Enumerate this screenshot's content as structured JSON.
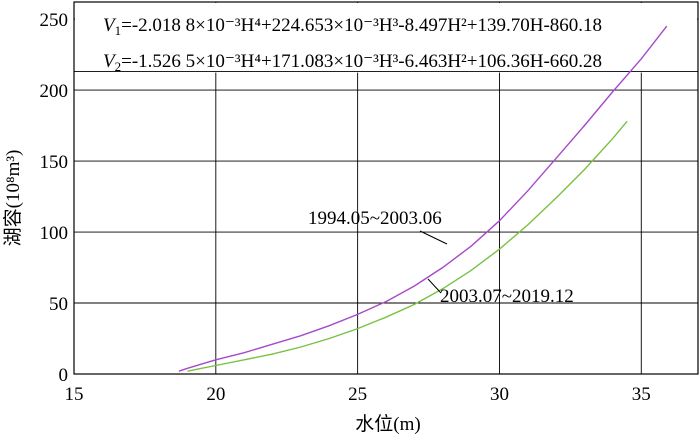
{
  "chart_data": {
    "type": "line",
    "xlabel": "水位(m)",
    "ylabel": "湖容(10⁸m³)",
    "xlim": [
      15,
      37
    ],
    "ylim": [
      0,
      262
    ],
    "xticks": [
      15,
      20,
      25,
      30,
      35
    ],
    "yticks": [
      0,
      50,
      100,
      150,
      200,
      250
    ],
    "grid": true,
    "formulas": [
      {
        "lhs": "V",
        "sub": "1",
        "text": "=-2.018 8×10⁻³H⁴+224.653×10⁻³H³-8.497H²+139.70H-860.18"
      },
      {
        "lhs": "V",
        "sub": "2",
        "text": "=-1.526 5×10⁻³H⁴+171.083×10⁻³H³-6.463H²+106.36H-660.28"
      }
    ],
    "series": [
      {
        "name": "1994.05~2003.06",
        "color": "#a64ac9",
        "x": [
          18.7,
          19.0,
          19.5,
          20.0,
          21.0,
          22.0,
          23.0,
          24.0,
          25.0,
          26.0,
          27.0,
          28.0,
          29.0,
          30.0,
          31.0,
          32.0,
          33.0,
          34.0,
          35.0,
          35.9
        ],
        "y": [
          2,
          4,
          7,
          10,
          15,
          21,
          27,
          34,
          42,
          51,
          62,
          75,
          90,
          108,
          129,
          152,
          175,
          199,
          222,
          245
        ]
      },
      {
        "name": "2003.07~2019.12",
        "color": "#7ac143",
        "x": [
          19.0,
          19.5,
          20.0,
          21.0,
          22.0,
          23.0,
          24.0,
          25.0,
          26.0,
          27.0,
          28.0,
          29.0,
          30.0,
          31.0,
          32.0,
          33.0,
          34.0,
          34.5
        ],
        "y": [
          2,
          4,
          6,
          10,
          14,
          19,
          25,
          32,
          40,
          49,
          60,
          73,
          88,
          105,
          124,
          144,
          166,
          178
        ]
      }
    ]
  }
}
